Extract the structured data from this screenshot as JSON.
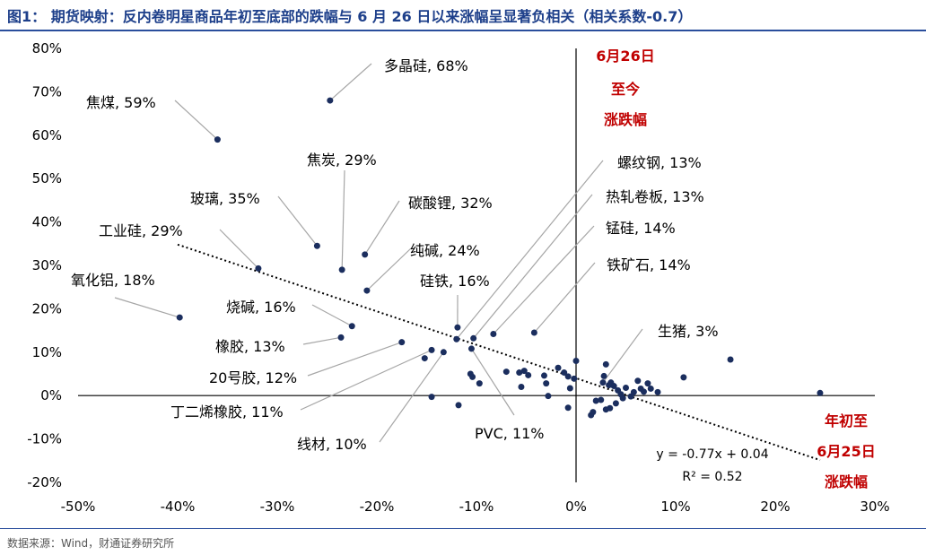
{
  "header": {
    "title": "图1： 期货映射：反内卷明星商品年初至底部的跌幅与 6 月 26 日以来涨幅呈显著负相关（相关系数-0.7）"
  },
  "footer": {
    "source": "数据来源：Wind，财通证券研究所"
  },
  "colors": {
    "title": "#1d3f8a",
    "rule": "#2a4e9c",
    "point": "#1b2e5e",
    "accent_red": "#c00000",
    "axis": "#000000",
    "leader": "#a6a6a6"
  },
  "chart_data": {
    "type": "scatter",
    "xlim": [
      -0.5,
      0.3
    ],
    "ylim": [
      -0.2,
      0.8
    ],
    "x_ticks": [
      -0.5,
      -0.4,
      -0.3,
      -0.2,
      -0.1,
      0,
      0.1,
      0.2,
      0.3
    ],
    "x_tick_labels": [
      "-50%",
      "-40%",
      "-30%",
      "-20%",
      "-10%",
      "0%",
      "10%",
      "20%",
      "30%"
    ],
    "y_ticks": [
      -0.2,
      -0.1,
      0,
      0.1,
      0.2,
      0.3,
      0.4,
      0.5,
      0.6,
      0.7,
      0.8
    ],
    "y_tick_labels": [
      "-20%",
      "-10%",
      "0%",
      "10%",
      "20%",
      "30%",
      "40%",
      "50%",
      "60%",
      "70%",
      "80%"
    ],
    "y_axis_title": [
      "6月26日",
      "至今",
      "涨跌幅"
    ],
    "x_axis_title": [
      "年初至",
      "6月25日",
      "涨跌幅"
    ],
    "trendline": {
      "slope": -0.77,
      "intercept": 0.04,
      "x_range": [
        -0.4,
        0.245
      ],
      "equation": "y = -0.77x + 0.04",
      "r2": "R² = 0.52"
    },
    "labeled_points": [
      {
        "name": "多晶硅",
        "x": -0.247,
        "y": 0.68,
        "label": "多晶硅, 68%"
      },
      {
        "name": "焦煤",
        "x": -0.36,
        "y": 0.59,
        "label": "焦煤, 59%"
      },
      {
        "name": "焦炭",
        "x": -0.235,
        "y": 0.29,
        "label": "焦炭, 29%"
      },
      {
        "name": "玻璃",
        "x": -0.26,
        "y": 0.345,
        "label": "玻璃, 35%"
      },
      {
        "name": "碳酸锂",
        "x": -0.212,
        "y": 0.325,
        "label": "碳酸锂, 32%"
      },
      {
        "name": "工业硅",
        "x": -0.319,
        "y": 0.293,
        "label": "工业硅, 29%"
      },
      {
        "name": "纯碱",
        "x": -0.21,
        "y": 0.242,
        "label": "纯碱, 24%"
      },
      {
        "name": "氧化铝",
        "x": -0.398,
        "y": 0.18,
        "label": "氧化铝, 18%"
      },
      {
        "name": "硅铁",
        "x": -0.119,
        "y": 0.157,
        "label": "硅铁, 16%"
      },
      {
        "name": "烧碱",
        "x": -0.225,
        "y": 0.16,
        "label": "烧碱, 16%"
      },
      {
        "name": "橡胶",
        "x": -0.236,
        "y": 0.134,
        "label": "橡胶, 13%"
      },
      {
        "name": "20号胶",
        "x": -0.175,
        "y": 0.123,
        "label": "20号胶, 12%"
      },
      {
        "name": "丁二烯橡胶",
        "x": -0.145,
        "y": 0.105,
        "label": "丁二烯橡胶, 11%"
      },
      {
        "name": "线材",
        "x": -0.133,
        "y": 0.1,
        "label": "线材, 10%"
      },
      {
        "name": "PVC",
        "x": -0.105,
        "y": 0.108,
        "label": "PVC, 11%"
      },
      {
        "name": "螺纹钢",
        "x": -0.12,
        "y": 0.13,
        "label": "螺纹钢, 13%"
      },
      {
        "name": "热轧卷板",
        "x": -0.103,
        "y": 0.132,
        "label": "热轧卷板, 13%"
      },
      {
        "name": "锰硅",
        "x": -0.083,
        "y": 0.142,
        "label": "锰硅, 14%"
      },
      {
        "name": "铁矿石",
        "x": -0.042,
        "y": 0.145,
        "label": "铁矿石, 14%"
      },
      {
        "name": "生猪",
        "x": 0.027,
        "y": 0.03,
        "label": "生猪, 3%"
      }
    ],
    "other_points": [
      {
        "x": -0.152,
        "y": 0.086
      },
      {
        "x": -0.145,
        "y": -0.003
      },
      {
        "x": -0.118,
        "y": -0.022
      },
      {
        "x": -0.106,
        "y": 0.05
      },
      {
        "x": -0.104,
        "y": 0.043
      },
      {
        "x": -0.097,
        "y": 0.028
      },
      {
        "x": -0.07,
        "y": 0.055
      },
      {
        "x": -0.057,
        "y": 0.053
      },
      {
        "x": -0.052,
        "y": 0.057
      },
      {
        "x": -0.048,
        "y": 0.047
      },
      {
        "x": -0.055,
        "y": 0.02
      },
      {
        "x": -0.032,
        "y": 0.046
      },
      {
        "x": -0.03,
        "y": 0.028
      },
      {
        "x": -0.028,
        "y": -0.001
      },
      {
        "x": -0.018,
        "y": 0.064
      },
      {
        "x": -0.012,
        "y": 0.053
      },
      {
        "x": -0.008,
        "y": 0.044
      },
      {
        "x": -0.006,
        "y": 0.017
      },
      {
        "x": -0.008,
        "y": -0.028
      },
      {
        "x": -0.002,
        "y": 0.039
      },
      {
        "x": 0.0,
        "y": 0.08
      },
      {
        "x": 0.015,
        "y": -0.045
      },
      {
        "x": 0.017,
        "y": -0.038
      },
      {
        "x": 0.02,
        "y": -0.012
      },
      {
        "x": 0.025,
        "y": -0.01
      },
      {
        "x": 0.028,
        "y": 0.045
      },
      {
        "x": 0.03,
        "y": 0.072
      },
      {
        "x": 0.03,
        "y": -0.032
      },
      {
        "x": 0.033,
        "y": 0.024
      },
      {
        "x": 0.035,
        "y": 0.03
      },
      {
        "x": 0.034,
        "y": -0.029
      },
      {
        "x": 0.038,
        "y": 0.022
      },
      {
        "x": 0.04,
        "y": -0.018
      },
      {
        "x": 0.042,
        "y": 0.012
      },
      {
        "x": 0.045,
        "y": 0.003
      },
      {
        "x": 0.047,
        "y": -0.006
      },
      {
        "x": 0.05,
        "y": 0.018
      },
      {
        "x": 0.055,
        "y": -0.002
      },
      {
        "x": 0.058,
        "y": 0.008
      },
      {
        "x": 0.062,
        "y": 0.034
      },
      {
        "x": 0.065,
        "y": 0.016
      },
      {
        "x": 0.068,
        "y": 0.009
      },
      {
        "x": 0.072,
        "y": 0.028
      },
      {
        "x": 0.075,
        "y": 0.016
      },
      {
        "x": 0.082,
        "y": 0.008
      },
      {
        "x": 0.108,
        "y": 0.042
      },
      {
        "x": 0.155,
        "y": 0.083
      },
      {
        "x": 0.245,
        "y": 0.006
      }
    ]
  }
}
